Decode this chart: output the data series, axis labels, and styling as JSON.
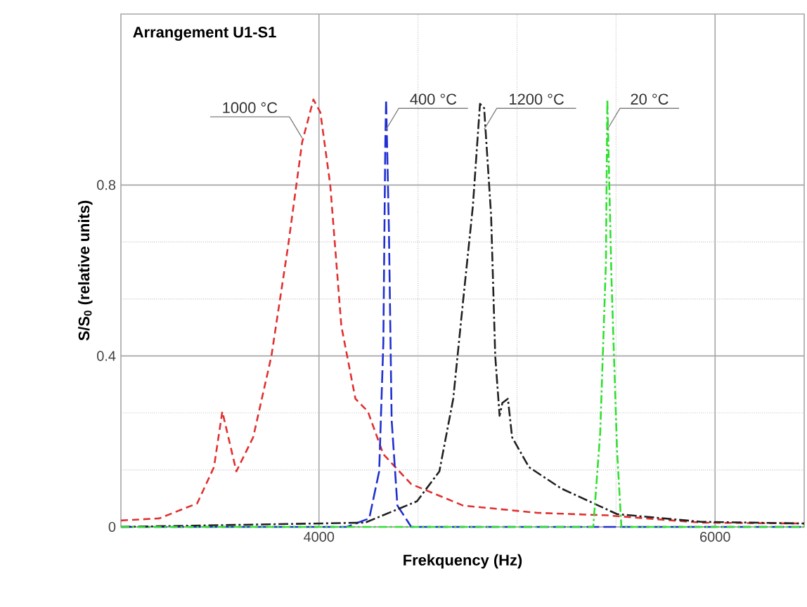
{
  "chart_data": {
    "type": "line",
    "title": "Arrangement U1-S1",
    "xlabel": "Frekquency (Hz)",
    "ylabel": "S/S$_{0}$ (relative units)",
    "xlim": [
      3000,
      6450
    ],
    "ylim": [
      0,
      1.2
    ],
    "xticks": [
      4000,
      6000
    ],
    "yticks": [
      0,
      0.4,
      0.8
    ],
    "grid": true,
    "line_style": "dashed",
    "series": [
      {
        "color": "#e03030",
        "x": [
          3000,
          3194,
          3385,
          3470,
          3512,
          3583,
          3668,
          3760,
          3845,
          3915,
          3972,
          4007,
          4057,
          4113,
          4184,
          4247,
          4325,
          4466,
          4728,
          5102,
          5456,
          5929,
          6450
        ],
        "values": [
          0.015,
          0.02,
          0.055,
          0.14,
          0.27,
          0.13,
          0.21,
          0.4,
          0.66,
          0.9,
          1.0,
          0.97,
          0.8,
          0.47,
          0.3,
          0.27,
          0.17,
          0.1,
          0.05,
          0.033,
          0.027,
          0.01,
          0.008
        ]
      },
      {
        "color": "#2030d0",
        "x": [
          3000,
          4141,
          4254,
          4304,
          4325,
          4335,
          4339,
          4353,
          4367,
          4396,
          4466,
          6450
        ],
        "values": [
          0,
          0,
          0.02,
          0.13,
          0.43,
          0.9,
          1.0,
          0.7,
          0.25,
          0.05,
          0,
          0
        ]
      },
      {
        "color": "#202020",
        "x": [
          3000,
          4233,
          4495,
          4608,
          4678,
          4728,
          4777,
          4813,
          4834,
          4869,
          4890,
          4912,
          4926,
          4954,
          4975,
          5060,
          5223,
          5505,
          5929,
          6450
        ],
        "values": [
          0,
          0.01,
          0.06,
          0.13,
          0.3,
          0.53,
          0.75,
          0.99,
          0.98,
          0.73,
          0.4,
          0.26,
          0.29,
          0.3,
          0.21,
          0.14,
          0.09,
          0.03,
          0.012,
          0.008
        ]
      },
      {
        "color": "#30e030",
        "x": [
          3000,
          5385,
          5420,
          5449,
          5456,
          5477,
          5505,
          5527,
          6450
        ],
        "values": [
          0,
          0,
          0.22,
          0.62,
          1.0,
          0.58,
          0.18,
          0,
          0
        ]
      }
    ],
    "annotations": [
      {
        "text": "1000 °C",
        "x": 3915,
        "y": 0.91
      },
      {
        "text": "400 °C",
        "x": 4339,
        "y": 0.93
      },
      {
        "text": "1200 °C",
        "x": 4834,
        "y": 0.93
      },
      {
        "text": "20 °C",
        "x": 5456,
        "y": 0.93
      }
    ]
  }
}
